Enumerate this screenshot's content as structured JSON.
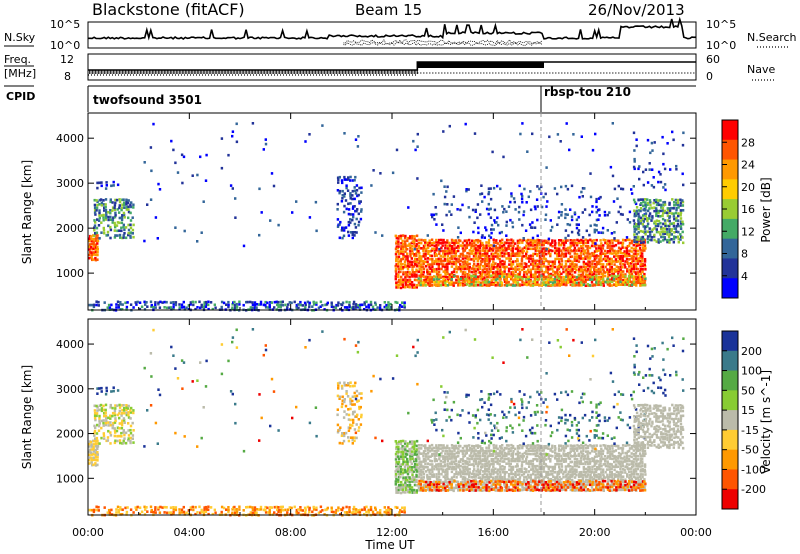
{
  "header": {
    "station": "Blackstone (fitACF)",
    "beam": "Beam 15",
    "date": "26/Nov/2013"
  },
  "top_panels": {
    "nsky_label": "N.Sky",
    "nsky_ticks": [
      "10^5",
      "10^0"
    ],
    "nsearch_label": "N.Search",
    "nsearch_ticks": [
      "10^5",
      "10^0"
    ],
    "freq_label_1": "Freq.",
    "freq_label_2": "[MHz]",
    "freq_ticks": [
      "12",
      "8"
    ],
    "nave_label": "Nave",
    "nave_ticks": [
      "60",
      "0"
    ],
    "cpid_label": "CPID",
    "cpid_segments": [
      {
        "name": "twofsound 3501",
        "start_hour": 0
      },
      {
        "name": "rbsp-tou 210",
        "start_hour": 18
      }
    ]
  },
  "x_axis": {
    "label": "Time UT",
    "ticks": [
      "00:00",
      "04:00",
      "08:00",
      "12:00",
      "16:00",
      "20:00",
      "00:00"
    ]
  },
  "power_panel": {
    "ylabel": "Slant Range [km]",
    "yticks": [
      "4000",
      "3000",
      "2000",
      "1000"
    ],
    "colorbar_label": "Power [dB]",
    "colorbar_ticks": [
      "28",
      "24",
      "20",
      "16",
      "12",
      "8",
      "4"
    ],
    "colors": [
      "#ff0000",
      "#ff5500",
      "#ff9900",
      "#ffcc00",
      "#99cc33",
      "#44aa66",
      "#336699",
      "#223399",
      "#0000ff"
    ]
  },
  "velocity_panel": {
    "ylabel": "Slant Range [km]",
    "yticks": [
      "4000",
      "3000",
      "2000",
      "1000"
    ],
    "colorbar_label": "Velocity [m s^-1]",
    "colorbar_ticks": [
      "200",
      "100",
      "50",
      "15",
      "-15",
      "-50",
      "-100",
      "-200"
    ],
    "colors": [
      "#1a3399",
      "#3a7a8a",
      "#55aa44",
      "#88cc33",
      "#bbbbaa",
      "#ffcc33",
      "#ff9900",
      "#ff5500",
      "#ee0000"
    ]
  },
  "chart_data": {
    "type": "heatmap",
    "title": "Blackstone (fitACF)",
    "xlabel": "Time UT",
    "ylabel": "Slant Range [km]",
    "xlim_hours": [
      0,
      24
    ],
    "ylim_km": [
      180,
      4560
    ],
    "panels": [
      {
        "name": "Power",
        "units": "dB",
        "range": [
          0,
          30
        ]
      },
      {
        "name": "Velocity",
        "units": "m s^-1",
        "range": [
          -250,
          250
        ]
      }
    ]
  }
}
